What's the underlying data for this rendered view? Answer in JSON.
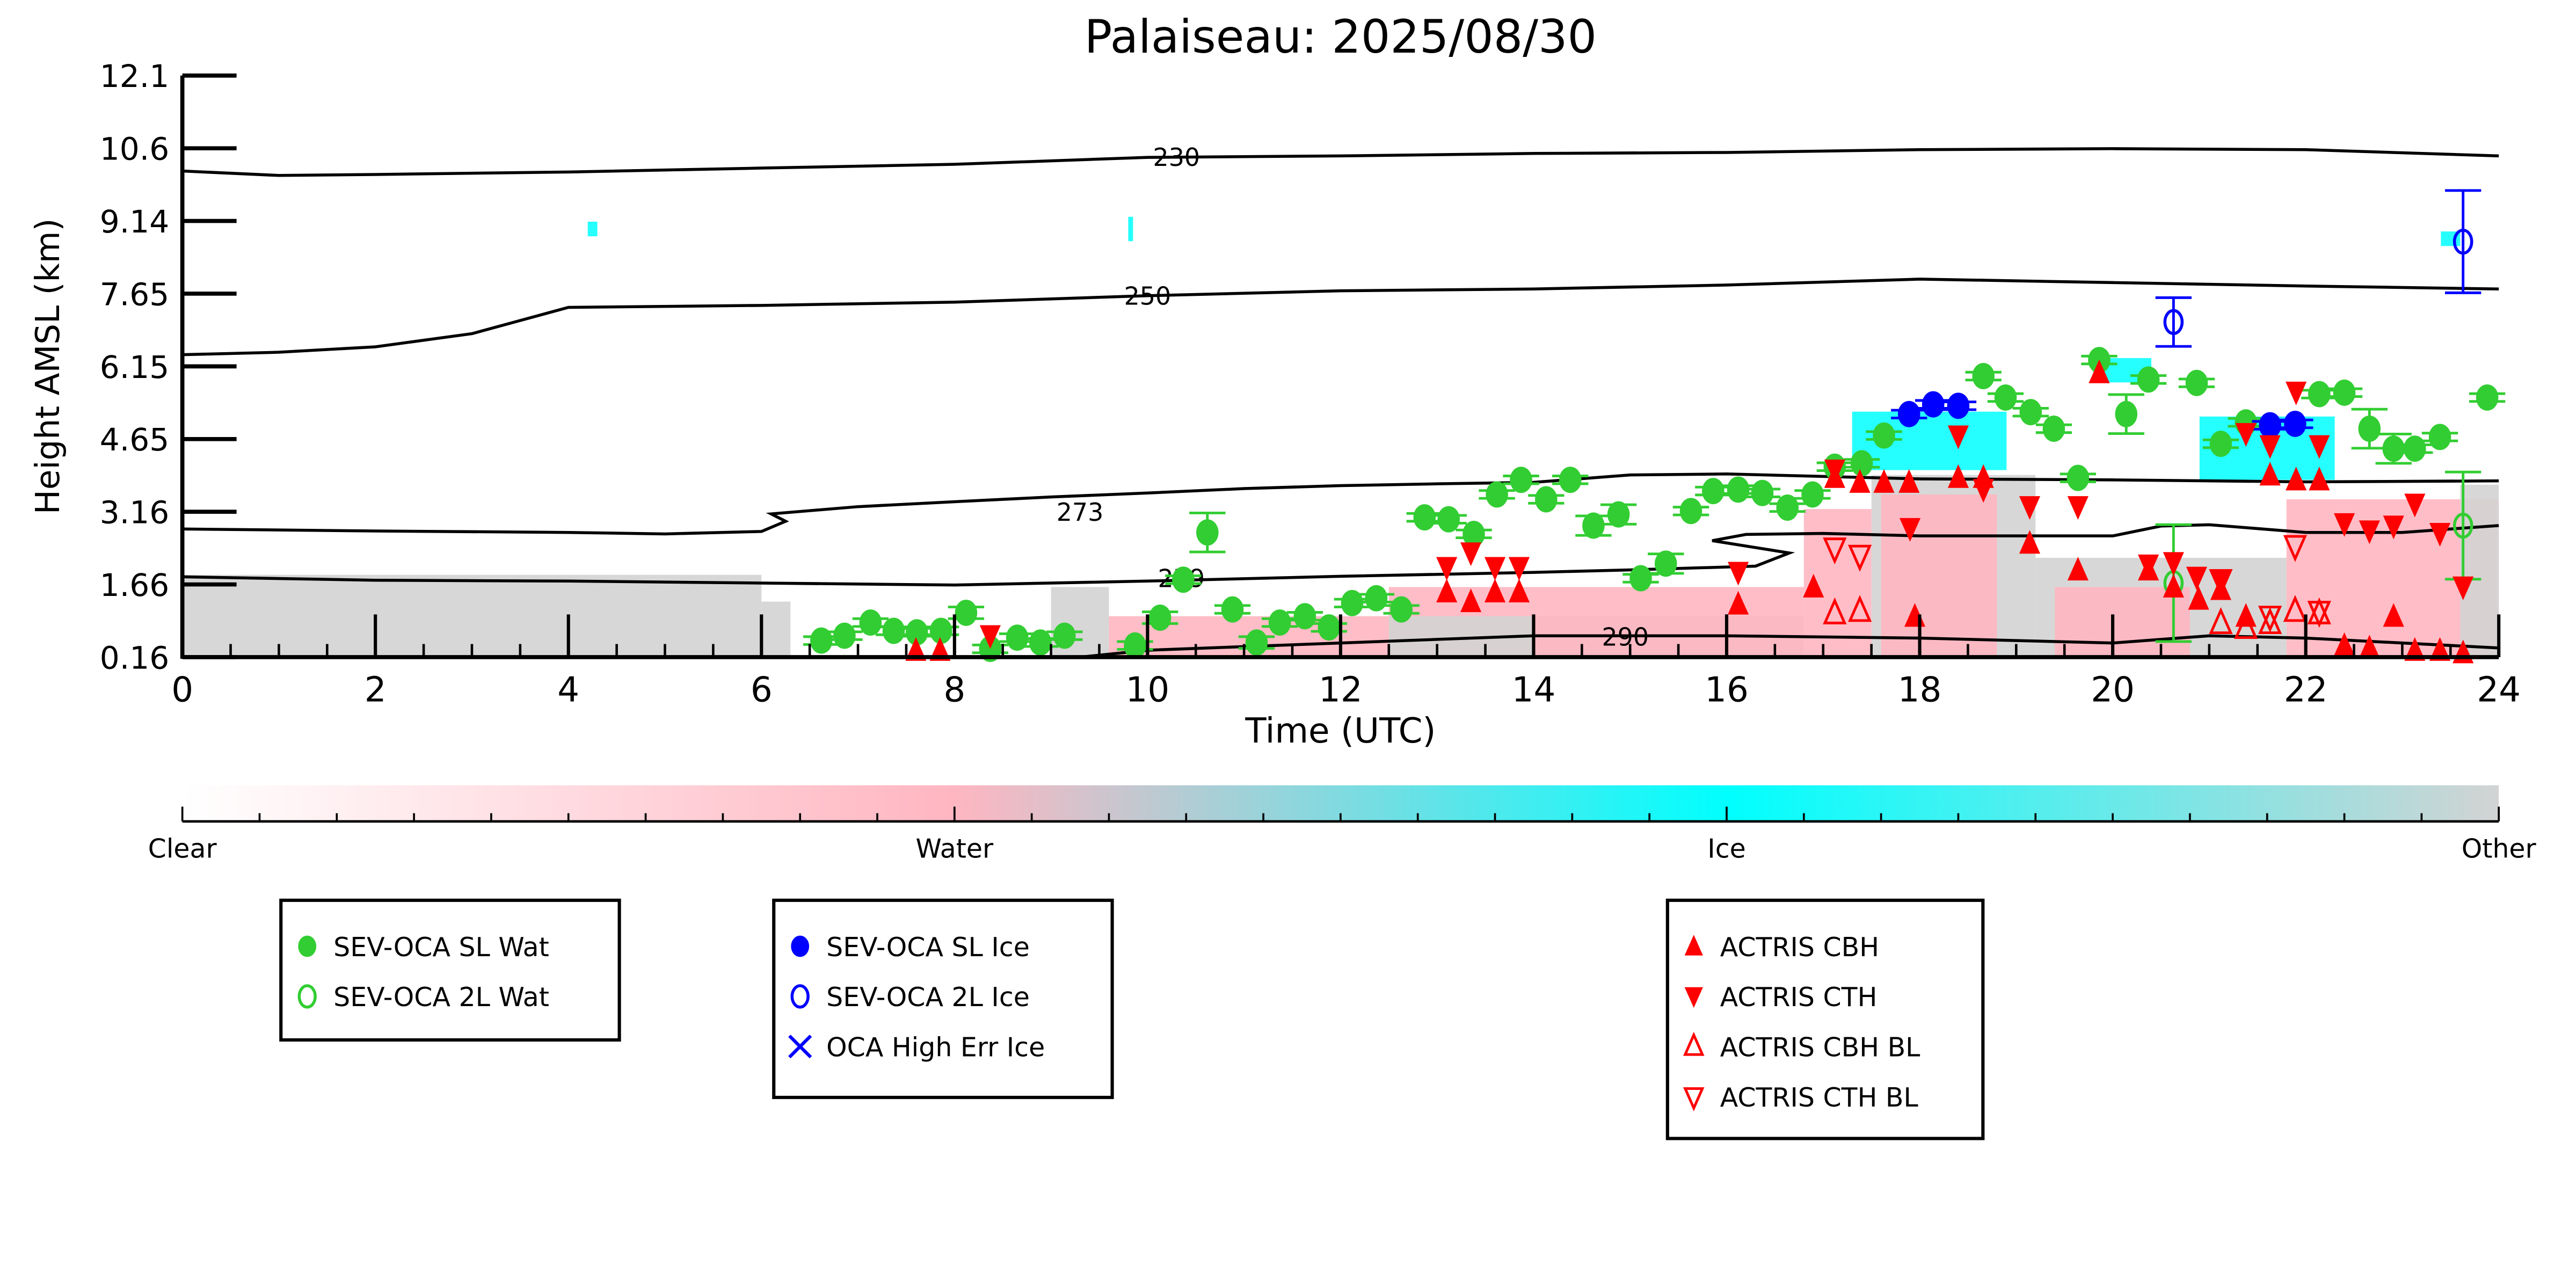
{
  "chart_data": {
    "type": "scatter",
    "title": "Palaiseau: 2025/08/30",
    "xlabel": "Time (UTC)",
    "ylabel": "Height AMSL (km)",
    "xlim": [
      0,
      24
    ],
    "ylim": [
      0.16,
      12.1
    ],
    "xticks": [
      "0",
      "2",
      "4",
      "6",
      "8",
      "10",
      "12",
      "14",
      "16",
      "18",
      "20",
      "22",
      "24"
    ],
    "yticks": [
      "0.16",
      "1.66",
      "3.16",
      "4.65",
      "6.15",
      "7.65",
      "9.14",
      "10.6",
      "12.1"
    ],
    "colorbar": {
      "labels": [
        "Clear",
        "Water",
        "Ice",
        "Other"
      ],
      "colors": [
        "#ffffff",
        "#ffb6c1",
        "#00ffff",
        "#d3d3d3"
      ]
    },
    "colors": {
      "water": "#32cd32",
      "ice": "#0000ff",
      "actris": "#ff0000",
      "other": "#d3d3d3",
      "pink": "#ffb6c1",
      "cyan": "#00ffff"
    },
    "contours": [
      {
        "label": "230",
        "label_at": [
          10.3,
          10.45
        ],
        "points": [
          [
            0,
            10.14
          ],
          [
            1,
            10.05
          ],
          [
            2,
            10.07
          ],
          [
            4,
            10.12
          ],
          [
            6,
            10.2
          ],
          [
            8,
            10.28
          ],
          [
            10,
            10.42
          ],
          [
            12,
            10.45
          ],
          [
            14,
            10.5
          ],
          [
            16,
            10.52
          ],
          [
            18,
            10.58
          ],
          [
            20,
            10.6
          ],
          [
            22,
            10.58
          ],
          [
            24,
            10.45
          ]
        ]
      },
      {
        "label": "250",
        "label_at": [
          10.0,
          7.6
        ],
        "points": [
          [
            0,
            6.37
          ],
          [
            1,
            6.42
          ],
          [
            2,
            6.53
          ],
          [
            3,
            6.8
          ],
          [
            3.5,
            7.07
          ],
          [
            4,
            7.34
          ],
          [
            6,
            7.38
          ],
          [
            8,
            7.45
          ],
          [
            10,
            7.58
          ],
          [
            12,
            7.68
          ],
          [
            14,
            7.72
          ],
          [
            16,
            7.8
          ],
          [
            18,
            7.92
          ],
          [
            20,
            7.85
          ],
          [
            22,
            7.78
          ],
          [
            24,
            7.72
          ]
        ]
      },
      {
        "label": "273",
        "label_at": [
          9.3,
          3.16
        ],
        "points": [
          [
            0,
            2.79
          ],
          [
            2,
            2.75
          ],
          [
            4,
            2.72
          ],
          [
            5,
            2.69
          ],
          [
            6,
            2.74
          ],
          [
            6.25,
            2.95
          ],
          [
            6.1,
            3.1
          ],
          [
            7,
            3.25
          ],
          [
            8,
            3.35
          ],
          [
            9,
            3.45
          ],
          [
            10,
            3.53
          ],
          [
            11,
            3.62
          ],
          [
            12,
            3.68
          ],
          [
            13,
            3.72
          ],
          [
            14,
            3.75
          ],
          [
            15,
            3.9
          ],
          [
            16,
            3.92
          ],
          [
            17,
            3.87
          ],
          [
            18,
            3.82
          ],
          [
            20,
            3.8
          ],
          [
            22,
            3.76
          ],
          [
            24,
            3.78
          ]
        ]
      },
      {
        "label": "279",
        "label_at": [
          10.35,
          1.8
        ],
        "points": [
          [
            0,
            1.81
          ],
          [
            2,
            1.74
          ],
          [
            4,
            1.72
          ],
          [
            6,
            1.68
          ],
          [
            8,
            1.64
          ],
          [
            10,
            1.72
          ],
          [
            12,
            1.82
          ],
          [
            14,
            1.9
          ],
          [
            15,
            1.95
          ],
          [
            16.3,
            2.03
          ],
          [
            16.65,
            2.3
          ],
          [
            15.85,
            2.55
          ],
          [
            16.2,
            2.68
          ],
          [
            17,
            2.7
          ],
          [
            18,
            2.65
          ],
          [
            20,
            2.65
          ],
          [
            20.5,
            2.85
          ],
          [
            21,
            2.88
          ],
          [
            22,
            2.72
          ],
          [
            23,
            2.72
          ],
          [
            24,
            2.86
          ]
        ]
      },
      {
        "label": "290",
        "label_at": [
          14.95,
          0.6
        ],
        "points": [
          [
            9.3,
            0.16
          ],
          [
            10,
            0.3
          ],
          [
            12,
            0.45
          ],
          [
            14,
            0.6
          ],
          [
            16,
            0.6
          ],
          [
            18,
            0.55
          ],
          [
            20,
            0.45
          ],
          [
            21,
            0.6
          ],
          [
            22,
            0.55
          ],
          [
            23,
            0.45
          ],
          [
            24,
            0.35
          ]
        ]
      }
    ],
    "series": [
      {
        "name": "SEV-OCA SL Wat",
        "marker": "filled-circle",
        "color": "#32cd32",
        "points": [
          [
            6.62,
            0.5,
            0.08
          ],
          [
            6.86,
            0.6,
            0.08
          ],
          [
            7.13,
            0.87,
            0.08
          ],
          [
            7.37,
            0.7,
            0.08
          ],
          [
            7.61,
            0.67,
            0.08
          ],
          [
            7.86,
            0.7,
            0.08
          ],
          [
            8.12,
            1.07,
            0.12
          ],
          [
            8.37,
            0.33,
            0.08
          ],
          [
            8.65,
            0.56,
            0.08
          ],
          [
            8.89,
            0.46,
            0.08
          ],
          [
            9.14,
            0.6,
            0.08
          ],
          [
            9.87,
            0.4,
            0.08
          ],
          [
            10.13,
            0.97,
            0.12
          ],
          [
            10.37,
            1.75,
            0.08
          ],
          [
            10.62,
            2.72,
            0.4
          ],
          [
            10.88,
            1.14,
            0.08
          ],
          [
            11.13,
            0.46,
            0.12
          ],
          [
            11.37,
            0.87,
            0.08
          ],
          [
            11.63,
            1.0,
            0.08
          ],
          [
            11.88,
            0.77,
            0.08
          ],
          [
            12.12,
            1.27,
            0.08
          ],
          [
            12.37,
            1.37,
            0.08
          ],
          [
            12.63,
            1.14,
            0.08
          ],
          [
            12.87,
            3.03,
            0.08
          ],
          [
            13.12,
            2.99,
            0.08
          ],
          [
            13.38,
            2.69,
            0.08
          ],
          [
            13.62,
            3.5,
            0.08
          ],
          [
            13.87,
            3.8,
            0.08
          ],
          [
            14.13,
            3.4,
            0.08
          ],
          [
            14.38,
            3.8,
            0.08
          ],
          [
            14.62,
            2.86,
            0.2
          ],
          [
            14.88,
            3.09,
            0.2
          ],
          [
            15.11,
            1.78,
            0.08
          ],
          [
            15.37,
            2.08,
            0.2
          ],
          [
            15.63,
            3.16,
            0.08
          ],
          [
            15.86,
            3.57,
            0.08
          ],
          [
            16.12,
            3.6,
            0.08
          ],
          [
            16.37,
            3.53,
            0.08
          ],
          [
            16.63,
            3.23,
            0.08
          ],
          [
            16.89,
            3.5,
            0.08
          ],
          [
            17.12,
            4.07,
            0.08
          ],
          [
            17.4,
            4.14,
            0.08
          ],
          [
            17.63,
            4.71,
            0.08
          ],
          [
            18.66,
            5.93,
            0.08
          ],
          [
            18.89,
            5.49,
            0.08
          ],
          [
            19.15,
            5.19,
            0.08
          ],
          [
            19.39,
            4.85,
            0.08
          ],
          [
            19.64,
            3.84,
            0.08
          ],
          [
            19.86,
            6.26,
            0.08
          ],
          [
            20.14,
            5.15,
            0.4
          ],
          [
            20.37,
            5.86,
            0.08
          ],
          [
            20.87,
            5.79,
            0.08
          ],
          [
            21.12,
            4.54,
            0.08
          ],
          [
            21.38,
            4.98,
            0.08
          ],
          [
            22.14,
            5.56,
            0.08
          ],
          [
            22.4,
            5.59,
            0.08
          ],
          [
            22.66,
            4.85,
            0.4
          ],
          [
            22.91,
            4.44,
            0.3
          ],
          [
            23.13,
            4.44,
            0.08
          ],
          [
            23.39,
            4.68,
            0.08
          ],
          [
            23.88,
            5.49,
            0.08
          ]
        ]
      },
      {
        "name": "SEV-OCA 2L Wat",
        "marker": "open-circle",
        "color": "#32cd32",
        "points": [
          [
            20.63,
            1.68,
            1.2
          ],
          [
            23.63,
            2.86,
            1.1
          ]
        ]
      },
      {
        "name": "SEV-OCA SL Ice",
        "marker": "filled-circle",
        "color": "#0000ff",
        "points": [
          [
            17.89,
            5.15,
            0.08
          ],
          [
            18.14,
            5.35,
            0.08
          ],
          [
            18.4,
            5.32,
            0.08
          ],
          [
            21.63,
            4.92,
            0.08
          ],
          [
            21.89,
            4.95,
            0.08
          ]
        ]
      },
      {
        "name": "SEV-OCA 2L Ice",
        "marker": "open-circle",
        "color": "#0000ff",
        "points": [
          [
            20.63,
            7.04,
            0.5
          ],
          [
            23.63,
            8.69,
            1.05
          ]
        ]
      },
      {
        "name": "OCA High Err Ice",
        "marker": "x",
        "color": "#0000ff",
        "points": []
      },
      {
        "name": "ACTRIS CBH",
        "marker": "up-triangle",
        "color": "#ff0000",
        "points": [
          [
            7.6,
            0.3
          ],
          [
            7.85,
            0.3
          ],
          [
            13.1,
            1.5
          ],
          [
            13.35,
            1.3
          ],
          [
            13.6,
            1.5
          ],
          [
            13.85,
            1.5
          ],
          [
            16.12,
            1.25
          ],
          [
            16.9,
            1.6
          ],
          [
            17.12,
            3.85
          ],
          [
            17.38,
            3.75
          ],
          [
            17.63,
            3.75
          ],
          [
            17.89,
            3.75
          ],
          [
            17.95,
            1.0
          ],
          [
            18.4,
            3.85
          ],
          [
            18.66,
            3.85
          ],
          [
            19.14,
            2.5
          ],
          [
            19.64,
            1.95
          ],
          [
            19.86,
            6.0
          ],
          [
            20.37,
            1.95
          ],
          [
            20.63,
            1.6
          ],
          [
            20.89,
            1.35
          ],
          [
            21.12,
            1.55
          ],
          [
            21.38,
            1.0
          ],
          [
            21.63,
            3.9
          ],
          [
            21.9,
            3.8
          ],
          [
            22.14,
            3.8
          ],
          [
            22.4,
            0.4
          ],
          [
            22.66,
            0.35
          ],
          [
            22.91,
            1.0
          ],
          [
            23.13,
            0.3
          ],
          [
            23.39,
            0.3
          ],
          [
            23.63,
            0.25
          ]
        ]
      },
      {
        "name": "ACTRIS CTH",
        "marker": "down-triangle",
        "color": "#ff0000",
        "points": [
          [
            8.37,
            0.6
          ],
          [
            13.1,
            2.0
          ],
          [
            13.35,
            2.3
          ],
          [
            13.6,
            2.0
          ],
          [
            13.85,
            2.0
          ],
          [
            16.12,
            1.9
          ],
          [
            17.12,
            4.0
          ],
          [
            17.9,
            2.8
          ],
          [
            18.4,
            4.7
          ],
          [
            18.66,
            3.6
          ],
          [
            19.14,
            3.25
          ],
          [
            19.64,
            3.25
          ],
          [
            20.37,
            2.05
          ],
          [
            20.63,
            2.1
          ],
          [
            20.87,
            1.8
          ],
          [
            21.12,
            1.75
          ],
          [
            21.38,
            4.75
          ],
          [
            21.63,
            4.5
          ],
          [
            21.9,
            5.6
          ],
          [
            22.14,
            4.5
          ],
          [
            22.4,
            2.9
          ],
          [
            22.66,
            2.75
          ],
          [
            22.91,
            2.85
          ],
          [
            23.13,
            3.3
          ],
          [
            23.39,
            2.7
          ],
          [
            23.63,
            1.6
          ]
        ]
      },
      {
        "name": "ACTRIS CBH BL",
        "marker": "open-up-triangle",
        "color": "#ff0000",
        "points": [
          [
            17.12,
            1.05
          ],
          [
            17.38,
            1.1
          ],
          [
            21.12,
            0.85
          ],
          [
            21.38,
            0.75
          ],
          [
            21.63,
            0.85
          ],
          [
            21.89,
            1.1
          ],
          [
            22.14,
            1.05
          ]
        ]
      },
      {
        "name": "ACTRIS CTH BL",
        "marker": "open-down-triangle",
        "color": "#ff0000",
        "points": [
          [
            17.12,
            2.4
          ],
          [
            17.38,
            2.25
          ],
          [
            21.12,
            1.75
          ],
          [
            21.63,
            1.0
          ],
          [
            21.89,
            2.45
          ],
          [
            22.14,
            1.1
          ]
        ]
      }
    ],
    "legend_groups": [
      [
        "SEV-OCA SL Wat",
        "SEV-OCA 2L Wat"
      ],
      [
        "SEV-OCA SL Ice",
        "SEV-OCA 2L Ice",
        "OCA High Err Ice"
      ],
      [
        "ACTRIS CBH",
        "ACTRIS CTH",
        "ACTRIS CBH BL",
        "ACTRIS CTH BL"
      ]
    ],
    "legend_placement": "bottom"
  }
}
